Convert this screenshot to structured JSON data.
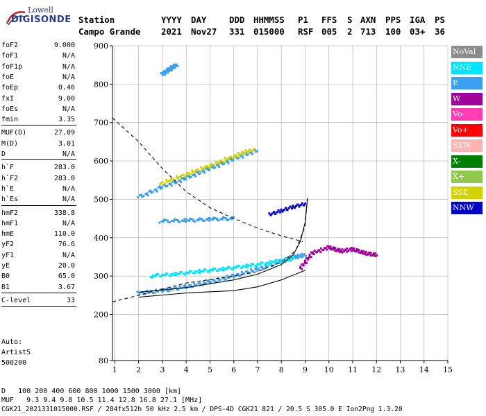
{
  "logo": {
    "line1": "Lowell",
    "line2": "DIGISONDE"
  },
  "header": {
    "row1": [
      {
        "id": "station",
        "text": "Station"
      },
      {
        "id": "yyyy",
        "text": "YYYY"
      },
      {
        "id": "day",
        "text": "DAY"
      },
      {
        "id": "ddd",
        "text": "DDD"
      },
      {
        "id": "hhmmss",
        "text": "HHMMSS"
      },
      {
        "id": "p1",
        "text": "P1"
      },
      {
        "id": "ffs",
        "text": "FFS"
      },
      {
        "id": "s",
        "text": "S"
      },
      {
        "id": "axn",
        "text": "AXN"
      },
      {
        "id": "pps",
        "text": "PPS"
      },
      {
        "id": "iga",
        "text": "IGA"
      },
      {
        "id": "ps",
        "text": "PS"
      }
    ],
    "row2": [
      {
        "id": "station",
        "text": "Campo Grande"
      },
      {
        "id": "yyyy",
        "text": "2021"
      },
      {
        "id": "day",
        "text": "Nov27"
      },
      {
        "id": "ddd",
        "text": "331"
      },
      {
        "id": "hhmmss",
        "text": "015000"
      },
      {
        "id": "p1",
        "text": "RSF"
      },
      {
        "id": "ffs",
        "text": "005"
      },
      {
        "id": "s",
        "text": "2"
      },
      {
        "id": "axn",
        "text": "713"
      },
      {
        "id": "pps",
        "text": "100"
      },
      {
        "id": "iga",
        "text": "03+"
      },
      {
        "id": "ps",
        "text": "36"
      }
    ]
  },
  "params": [
    {
      "group": [
        {
          "label": "foF2",
          "value": "9.000"
        },
        {
          "label": "foF1",
          "value": "N/A"
        },
        {
          "label": "foF1p",
          "value": "N/A"
        },
        {
          "label": "foE",
          "value": "N/A"
        },
        {
          "label": "foEp",
          "value": "0.46"
        },
        {
          "label": "fxI",
          "value": "9.00"
        },
        {
          "label": "foEs",
          "value": "N/A"
        },
        {
          "label": "fmin",
          "value": "3.35"
        }
      ]
    },
    {
      "group": [
        {
          "label": "MUF(D)",
          "value": "27.09"
        },
        {
          "label": "M(D)",
          "value": "3.01"
        },
        {
          "label": "D",
          "value": "N/A"
        }
      ]
    },
    {
      "group": [
        {
          "label": "h`F",
          "value": "283.0"
        },
        {
          "label": "h`F2",
          "value": "283.0"
        },
        {
          "label": "h`E",
          "value": "N/A"
        },
        {
          "label": "h`Es",
          "value": "N/A"
        }
      ]
    },
    {
      "group": [
        {
          "label": "hmF2",
          "value": "338.8"
        },
        {
          "label": "hmF1",
          "value": "N/A"
        },
        {
          "label": "hmE",
          "value": "110.0"
        },
        {
          "label": "yF2",
          "value": "76.6"
        },
        {
          "label": "yF1",
          "value": "N/A"
        },
        {
          "label": "yE",
          "value": "20.0"
        },
        {
          "label": "B0",
          "value": "65.0"
        },
        {
          "label": "B1",
          "value": "3.67"
        }
      ]
    },
    {
      "group": [
        {
          "label": "C-level",
          "value": "33"
        }
      ]
    }
  ],
  "auto": {
    "line1": "Auto:",
    "line2": "Artist5",
    "line3": "500200"
  },
  "legend": [
    {
      "label": "NoVal",
      "color": "#8c8c8c"
    },
    {
      "label": "NNE",
      "color": "#00e5ff"
    },
    {
      "label": "E",
      "color": "#3ca0f0"
    },
    {
      "label": "W",
      "color": "#a0009c"
    },
    {
      "label": "Vo-",
      "color": "#ff3cb4"
    },
    {
      "label": "Vo+",
      "color": "#ff0000"
    },
    {
      "label": "SSW",
      "color": "#ffb4b4"
    },
    {
      "label": "X-",
      "color": "#008000"
    },
    {
      "label": "X+",
      "color": "#90c850"
    },
    {
      "label": "SSE",
      "color": "#d2d200"
    },
    {
      "label": "NNW",
      "color": "#0000c8"
    }
  ],
  "muf_table": {
    "d_label": "D",
    "d_values": [
      "100",
      "200",
      "400",
      "600",
      "800",
      "1000",
      "1500",
      "3000"
    ],
    "d_unit": "[km]",
    "muf_label": "MUF",
    "muf_values": [
      "9.3",
      "9.4",
      "9.8",
      "10.5",
      "11.4",
      "12.8",
      "16.8",
      "27.1"
    ],
    "muf_unit": "[MHz]"
  },
  "footer": "CGK21_2021331015000.RSF / 284fx512h 50 kHz 2.5 km / DPS-4D CGK21 821 / 20.5 S 305.0 E Ion2Png 1.3.20",
  "chart_data": {
    "type": "scatter",
    "xlim": [
      0.9,
      15
    ],
    "ylim": [
      80,
      900
    ],
    "x_ticks": [
      1,
      2,
      3,
      4,
      5,
      6,
      7,
      8,
      9,
      10,
      11,
      12,
      13,
      14,
      15
    ],
    "y_ticks": [
      80,
      200,
      300,
      400,
      500,
      600,
      700,
      800,
      900
    ],
    "grid": true,
    "xlabel": "",
    "ylabel": "",
    "series": [
      {
        "color": "#3ca0f0",
        "points": [
          [
            2,
            255
          ],
          [
            3,
            262
          ],
          [
            4,
            272
          ],
          [
            5,
            285
          ],
          [
            6,
            300
          ],
          [
            7,
            318
          ],
          [
            8,
            338
          ],
          [
            8.6,
            350
          ],
          [
            9,
            355
          ]
        ]
      },
      {
        "color": "#00e5ff",
        "points": [
          [
            2.5,
            300
          ],
          [
            3.5,
            305
          ],
          [
            4.5,
            312
          ],
          [
            5.5,
            318
          ],
          [
            6.5,
            326
          ],
          [
            7.5,
            335
          ],
          [
            8.5,
            345
          ]
        ]
      },
      {
        "color": "#3ca0f0",
        "points": [
          [
            2,
            505
          ],
          [
            3,
            532
          ],
          [
            4,
            555
          ],
          [
            5,
            580
          ],
          [
            6,
            605
          ],
          [
            7,
            628
          ]
        ]
      },
      {
        "color": "#d2d200",
        "points": [
          [
            2.9,
            540
          ],
          [
            4,
            565
          ],
          [
            5,
            588
          ],
          [
            6,
            612
          ],
          [
            6.8,
            630
          ]
        ]
      },
      {
        "color": "#3ca0f0",
        "points": [
          [
            2.9,
            443
          ],
          [
            4,
            445
          ],
          [
            5,
            448
          ],
          [
            6,
            450
          ]
        ]
      },
      {
        "color": "#0000c8",
        "points": [
          [
            7.5,
            460
          ],
          [
            8,
            470
          ],
          [
            8.5,
            480
          ],
          [
            9,
            488
          ]
        ]
      },
      {
        "color": "#a0009c",
        "points": [
          [
            8.8,
            320
          ],
          [
            9.3,
            360
          ],
          [
            10,
            375
          ],
          [
            10.5,
            365
          ],
          [
            11,
            370
          ],
          [
            11.5,
            360
          ],
          [
            12,
            355
          ]
        ]
      },
      {
        "color": "#3ca0f0",
        "points": [
          [
            3,
            825
          ],
          [
            3.3,
            838
          ],
          [
            3.6,
            850
          ]
        ]
      }
    ],
    "curves": [
      {
        "style": "dashed",
        "points": [
          [
            0.9,
            712
          ],
          [
            2,
            650
          ],
          [
            3,
            580
          ],
          [
            4,
            520
          ],
          [
            5,
            478
          ],
          [
            6,
            450
          ],
          [
            7,
            425
          ],
          [
            8,
            405
          ],
          [
            8.9,
            390
          ]
        ]
      },
      {
        "style": "dashed",
        "points": [
          [
            0.9,
            233
          ],
          [
            2,
            250
          ],
          [
            4,
            282
          ],
          [
            6,
            300
          ],
          [
            7,
            312
          ],
          [
            8,
            336
          ],
          [
            8.6,
            366
          ],
          [
            9,
            430
          ],
          [
            9.1,
            510
          ]
        ]
      },
      {
        "style": "solid",
        "points": [
          [
            2,
            258
          ],
          [
            4,
            270
          ],
          [
            6,
            290
          ],
          [
            7,
            305
          ],
          [
            8,
            330
          ],
          [
            8.5,
            355
          ],
          [
            8.8,
            390
          ],
          [
            9,
            440
          ],
          [
            9.1,
            500
          ]
        ]
      },
      {
        "style": "solid",
        "points": [
          [
            2,
            245
          ],
          [
            4,
            256
          ],
          [
            6,
            262
          ],
          [
            7,
            272
          ],
          [
            8,
            290
          ],
          [
            8.6,
            305
          ],
          [
            9,
            315
          ]
        ]
      }
    ]
  }
}
